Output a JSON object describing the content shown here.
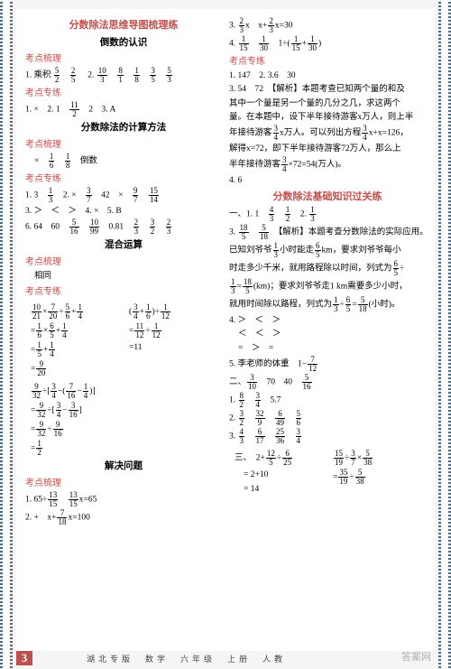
{
  "colors": {
    "accent": "#c0504d",
    "wave": "#4a6a8a",
    "bg": "#f5f5f5",
    "paper": "#ffffff"
  },
  "page_number": "3",
  "footer": "湖北专版　数学　六年级　上册　人教",
  "watermark": "答案网",
  "left": {
    "h1": "分数除法思维导图梳理练",
    "h2": "倒数的认识",
    "kdsl": "考点梳理",
    "kdzl": "考点专练",
    "s1_l1a": "1. 乘积",
    "s1_l1b": "2.",
    "s1_l2": "1. ×　2. 1　　 　2　3. A",
    "h3": "分数除法的计算方法",
    "s2_l1": "×　　 　　 　倒数",
    "s2_l2a": "1. 3　　 　2. ×　　 　42　×　　 ",
    "s2_l3": "3. ＞　＜　＞　4. ×　5. B",
    "s2_l4": "6. 64　60　　 　　 　0.81　",
    "h4": "混合运算",
    "s3_l1": "相同",
    "calcA": [
      "　 ÷　 ×　 +　 ",
      "=　 ×　 +　 ",
      "=　 +　 ",
      "=　 "
    ],
    "calcA_r": [
      "(　 +　 )÷　 ",
      "=　 ÷　 ",
      "= 11"
    ],
    "calcB": [
      "　 ÷[　 −(　 −　 )]",
      "=　 ÷[　 −　 ]",
      "=　 ÷　 ",
      "=　 "
    ],
    "h5": "解决问题",
    "s4_l1": "1. 65÷　 　　 x=65",
    "s4_l2": "2. +　x+　 x=100"
  },
  "right": {
    "r1": "3. 　 x　x+　 x=30",
    "r2": "4. 　 　　 　1÷(　 +　 )",
    "kdzl": "考点专练",
    "r3": "1. 147　2. 3.6　30",
    "r4": "3. 54　72　【解析】本题考查已知两个量的和及",
    "r5": "其中一个量是另一个量的几分之几，求这两个",
    "r6": "量。在本题中，设下半年接待游客x万人，则上半",
    "r7": "年接待游客　 x万人。可以列出方程　 x+x=126，",
    "r8": "解得x=72，即下半年接待游客72万人，那么上",
    "r9": "半年接待游客　 ×72=54(万人)。",
    "r10": "4. 6",
    "h6": "分数除法基础知识过关练",
    "t1": "一、1. 1　　 　　 　2.　 ",
    "t2": "3. 　 　　 　【解析】本题考查分数除法的实际应用。",
    "t3": "已知刘爷爷　 小时能走　 km，要求刘爷爷每小",
    "t4": "时走多少千米，就用路程除以时间，列式为　 ÷",
    "t5": "　 =　 (km)；要求刘爷爷走1 km需要多少小时，",
    "t6": "就用时间除以路程，列式为　 ÷　 =　 (小时)。",
    "t7": "4. ＞　＜　＞",
    "t8": "　 ＜　＜　＞",
    "t9": "　 =　＞　=",
    "t10": "5. 李老师的体重　1−　 ",
    "u1": "二、　 　70　40　　 ",
    "u2": "1. 　 　　 　5.7",
    "u3": "2. 　 　　 　　 　　 ",
    "u4": "3. 　 　　 　　 　　 ",
    "u5": "4. 　 　　 　　 ",
    "v1l": "三、　2+　 ÷　 ",
    "v1r": "　 ÷　 ×　 ",
    "v2l": "= 2+10",
    "v2r": "=　 ÷　 ",
    "v3l": "= 14",
    "v3r": ""
  }
}
